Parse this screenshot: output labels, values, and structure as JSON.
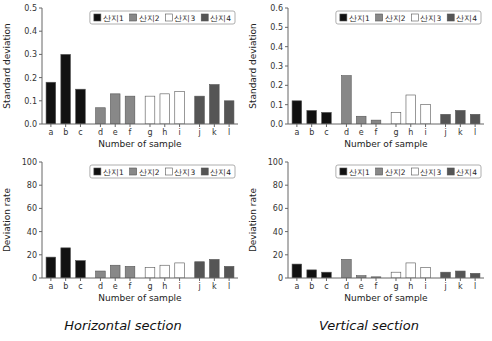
{
  "chart_data": [
    {
      "type": "bar",
      "x_label": "Number of sample",
      "y_label": "Standard deviation",
      "categories": [
        "a",
        "b",
        "c",
        "d",
        "e",
        "f",
        "g",
        "h",
        "i",
        "j",
        "k",
        "l"
      ],
      "series": [
        {
          "name": "산지1",
          "color": "#111111",
          "values": [
            0.18,
            0.3,
            0.15,
            null,
            null,
            null,
            null,
            null,
            null,
            null,
            null,
            null
          ]
        },
        {
          "name": "산지2",
          "color": "#888888",
          "values": [
            null,
            null,
            null,
            0.07,
            0.13,
            0.12,
            null,
            null,
            null,
            null,
            null,
            null
          ]
        },
        {
          "name": "산지3",
          "color": "#ffffff",
          "values": [
            null,
            null,
            null,
            null,
            null,
            null,
            0.12,
            0.13,
            0.14,
            null,
            null,
            null
          ]
        },
        {
          "name": "산지4",
          "color": "#555555",
          "values": [
            null,
            null,
            null,
            null,
            null,
            null,
            null,
            null,
            null,
            0.12,
            0.17,
            0.1
          ]
        }
      ],
      "ylim": [
        0.0,
        0.5
      ],
      "yticks": [
        {
          "value": 0.0,
          "label": "0.0"
        },
        0.1,
        0.2,
        0.3,
        0.4,
        0.5
      ],
      "grid": false,
      "legend": "upper right"
    },
    {
      "type": "bar",
      "x_label": "Number of sample",
      "y_label": "Standard deviation",
      "categories": [
        "a",
        "b",
        "c",
        "d",
        "e",
        "f",
        "g",
        "h",
        "i",
        "j",
        "k",
        "l"
      ],
      "series": [
        {
          "name": "산지1",
          "color": "#111111",
          "values": [
            0.12,
            0.07,
            0.06,
            null,
            null,
            null,
            null,
            null,
            null,
            null,
            null,
            null
          ]
        },
        {
          "name": "산지2",
          "color": "#888888",
          "values": [
            null,
            null,
            null,
            0.25,
            0.04,
            0.02,
            null,
            null,
            null,
            null,
            null,
            null
          ]
        },
        {
          "name": "산지3",
          "color": "#ffffff",
          "values": [
            null,
            null,
            null,
            null,
            null,
            null,
            0.06,
            0.15,
            0.1,
            null,
            null,
            null
          ]
        },
        {
          "name": "산지4",
          "color": "#555555",
          "values": [
            null,
            null,
            null,
            null,
            null,
            null,
            null,
            null,
            null,
            0.05,
            0.07,
            0.05
          ]
        }
      ],
      "ylim": [
        0.0,
        0.6
      ],
      "yticks": [
        {
          "value": 0.0,
          "label": "0.0"
        },
        0.1,
        0.2,
        0.3,
        0.4,
        0.5,
        0.6
      ],
      "grid": false,
      "legend": "upper right"
    },
    {
      "type": "bar",
      "x_label": "Number of sample",
      "y_label": "Deviation rate",
      "categories": [
        "a",
        "b",
        "c",
        "d",
        "e",
        "f",
        "g",
        "h",
        "i",
        "j",
        "k",
        "l"
      ],
      "series": [
        {
          "name": "산지1",
          "color": "#111111",
          "values": [
            18.0,
            26.0,
            15.0,
            null,
            null,
            null,
            null,
            null,
            null,
            null,
            null,
            null
          ]
        },
        {
          "name": "산지2",
          "color": "#888888",
          "values": [
            null,
            null,
            null,
            6.0,
            11.0,
            10.0,
            null,
            null,
            null,
            null,
            null,
            null
          ]
        },
        {
          "name": "산지3",
          "color": "#ffffff",
          "values": [
            null,
            null,
            null,
            null,
            null,
            null,
            9.0,
            11.0,
            13.0,
            null,
            null,
            null
          ]
        },
        {
          "name": "산지4",
          "color": "#555555",
          "values": [
            null,
            null,
            null,
            null,
            null,
            null,
            null,
            null,
            null,
            14.0,
            16.0,
            10.0
          ]
        }
      ],
      "ylim": [
        0.0,
        100.0
      ],
      "yticks": [
        0,
        20,
        40,
        60,
        80,
        100
      ],
      "grid": false,
      "legend": "upper right",
      "annotations": [
        "Horizontal section"
      ]
    },
    {
      "type": "bar",
      "x_label": "Number of sample",
      "y_label": "Deviation rate",
      "categories": [
        "a",
        "b",
        "c",
        "d",
        "e",
        "f",
        "g",
        "h",
        "i",
        "j",
        "k",
        "l"
      ],
      "series": [
        {
          "name": "산지1",
          "color": "#111111",
          "values": [
            12.0,
            7.0,
            5.0,
            null,
            null,
            null,
            null,
            null,
            null,
            null,
            null,
            null
          ]
        },
        {
          "name": "산지2",
          "color": "#888888",
          "values": [
            null,
            null,
            null,
            16.0,
            2.0,
            1.0,
            null,
            null,
            null,
            null,
            null,
            null
          ]
        },
        {
          "name": "산지3",
          "color": "#ffffff",
          "values": [
            null,
            null,
            null,
            null,
            null,
            null,
            5.0,
            13.0,
            9.0,
            null,
            null,
            null
          ]
        },
        {
          "name": "산지4",
          "color": "#555555",
          "values": [
            null,
            null,
            null,
            null,
            null,
            null,
            null,
            null,
            null,
            5.0,
            6.0,
            4.0
          ]
        }
      ],
      "ylim": [
        0.0,
        100.0
      ],
      "yticks": [
        0,
        20,
        40,
        60,
        80,
        100
      ],
      "grid": false,
      "legend": "upper right",
      "annotations": [
        "Vertical section"
      ]
    }
  ]
}
